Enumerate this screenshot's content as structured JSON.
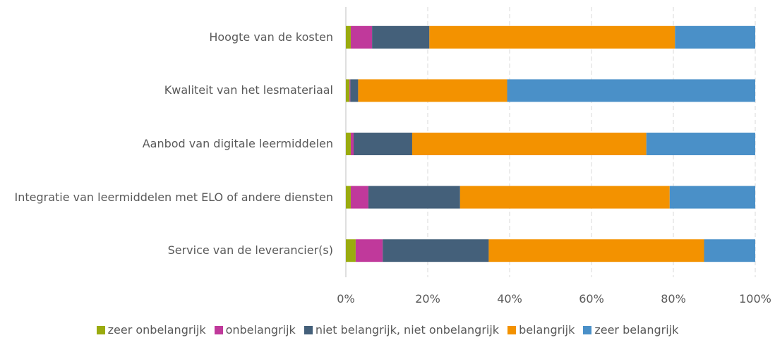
{
  "chart_data": {
    "type": "stacked_barh",
    "categories": [
      "Hoogte van de kosten",
      "Kwaliteit van het lesmateriaal",
      "Aanbod van digitale leermiddelen",
      "Integratie van leermiddelen met ELO of andere diensten",
      "Service van de leverancier(s)"
    ],
    "series": [
      {
        "name": "zeer onbelangrijk",
        "color": "#9aab0f",
        "values": [
          1.2,
          0.9,
          1.2,
          1.2,
          2.4
        ]
      },
      {
        "name": "onbelangrijk",
        "color": "#c0399b",
        "values": [
          5.2,
          0.2,
          0.7,
          4.3,
          6.6
        ]
      },
      {
        "name": "niet belangrijk, niet onbelangrijk",
        "color": "#44607a",
        "values": [
          14,
          1.9,
          14.3,
          22.4,
          25.9
        ]
      },
      {
        "name": "belangrijk",
        "color": "#f39200",
        "values": [
          60,
          36.4,
          57.2,
          51.2,
          52.6
        ]
      },
      {
        "name": "zeer belangrijk",
        "color": "#4a90c8",
        "values": [
          19.6,
          60.6,
          26.6,
          20.9,
          12.5
        ]
      }
    ],
    "xlim": [
      0,
      100
    ],
    "xticks": [
      {
        "value": 0,
        "label": "0%"
      },
      {
        "value": 20,
        "label": "20%"
      },
      {
        "value": 40,
        "label": "40%"
      },
      {
        "value": 60,
        "label": "60%"
      },
      {
        "value": 80,
        "label": "80%"
      },
      {
        "value": 100,
        "label": "100%"
      }
    ],
    "grid": true,
    "legend": "bottom"
  }
}
